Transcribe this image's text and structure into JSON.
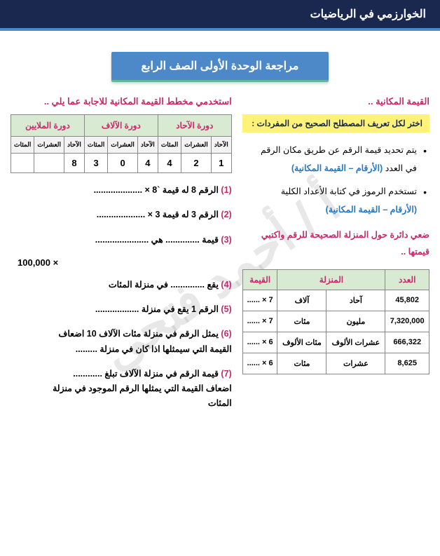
{
  "header": {
    "title": "الخوارزمي في الرياضيات"
  },
  "banner": {
    "text": "مراجعة الوحدة الأولى الصف الرابع"
  },
  "right": {
    "section_title": "القيمة المكانية ..",
    "yellow": "اختر لكل تعريف المصطلح الصحيح من المفردات :",
    "bullets": [
      {
        "text_a": "يتم تحديد قيمة الرقم عن طريق مكان الرقم",
        "text_b": "في العدد",
        "choice": "(الأرقام – القيمة المكانية)"
      },
      {
        "text_a": "تستخدم الرموز في كتابة الأعداد الكلية",
        "text_b": "",
        "choice": "(الأرقام – القيمة المكانية)"
      }
    ],
    "instruction": "ضعي دائرة حول المنزلة الصحيحة للرقم واكتبي قيمتها ..",
    "vtable": {
      "headers": [
        "العدد",
        "المنزلة",
        "القيمة"
      ],
      "rows": [
        {
          "num": "45,802",
          "p1": "آحاد",
          "p2": "آلاف",
          "v": "7 × ......"
        },
        {
          "num": "7,320,000",
          "p1": "مليون",
          "p2": "مئات",
          "v": "7 × ......"
        },
        {
          "num": "666,322",
          "p1": "عشرات الألوف",
          "p2": "مئات الألوف",
          "v": "6 × ......"
        },
        {
          "num": "8,625",
          "p1": "عشرات",
          "p2": "مئات",
          "v": "6 × ......"
        }
      ]
    }
  },
  "left": {
    "subtitle": "استخدمي مخطط القيمة المكانية للاجابة عما يلي ..",
    "pv_table": {
      "cycles": [
        "دورة الآحاد",
        "دورة الآلاف",
        "دورة الملايين"
      ],
      "subs": [
        "الآحاد",
        "العشرات",
        "المئات",
        "الآحاد",
        "العشرات",
        "المئات",
        "الآحاد",
        "العشرات",
        "المئات"
      ],
      "values": [
        "1",
        "2",
        "4",
        "4",
        "0",
        "3",
        "8",
        "",
        ""
      ]
    },
    "questions": [
      {
        "n": "(1)",
        "t": "الرقم 8 له قيمة `8 × ...................."
      },
      {
        "n": "(2)",
        "t": "الرقم 3 له قيمة 3 × ...................."
      },
      {
        "n": "(3)",
        "t": "قيمة .............. هي ......................"
      },
      {
        "big": "× 100,000"
      },
      {
        "n": "(4)",
        "t": "يقع .............. في منزلة المئات"
      },
      {
        "n": "(5)",
        "t": "الرقم 1 يقع في منزلة .................."
      },
      {
        "n": "(6)",
        "t": "يمثل الرقم في منزلة مئات الآلاف 10 اضعاف",
        "t2": "القيمة التي سيمثلها اذا كان في منزلة ........."
      },
      {
        "n": "(7)",
        "t": "قيمة الرقم في منزلة الآلاف تبلغ ............",
        "t2": "اضعاف القيمة التي يمثلها الرقم الموجود في منزلة",
        "t3": "المئات"
      }
    ]
  },
  "watermark": "أ / أحمد فتحي"
}
